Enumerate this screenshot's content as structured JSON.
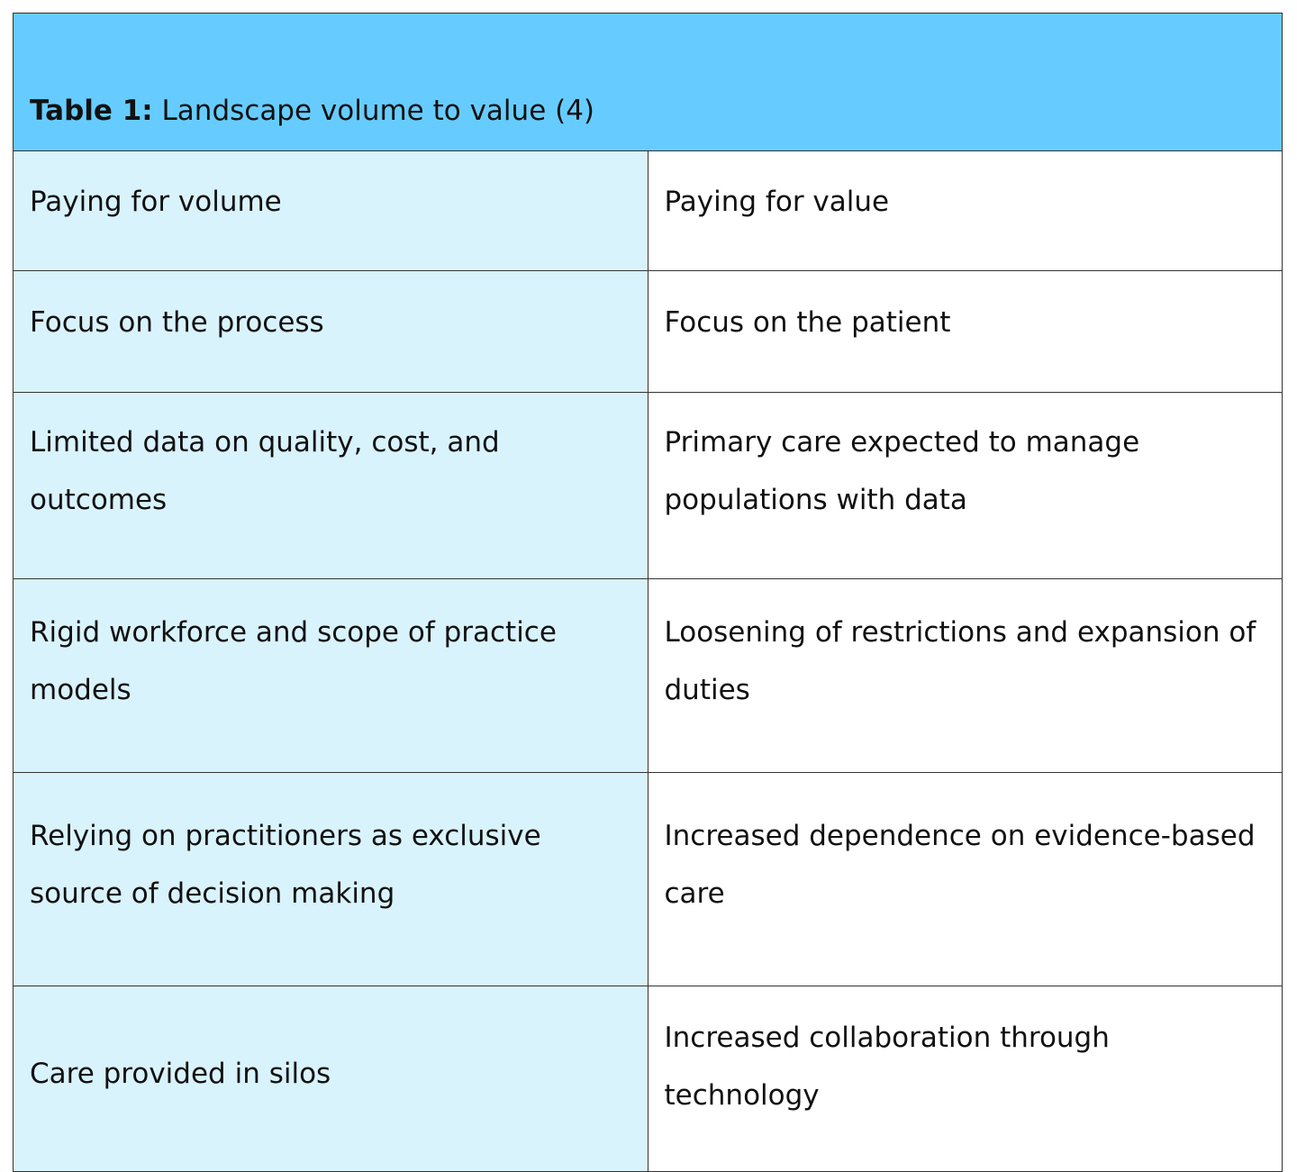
{
  "table": {
    "caption_label": "Table 1:",
    "caption_text": " Landscape volume to value (4)",
    "rows": [
      {
        "left": "Paying for volume",
        "right": "Paying for value"
      },
      {
        "left": "Focus on the process",
        "right": "Focus on the patient"
      },
      {
        "left": "Limited data on quality, cost, and outcomes",
        "right": "Primary care expected to manage populations with data"
      },
      {
        "left": "Rigid workforce and scope of practice models",
        "right": "Loosening of restrictions and expansion of duties"
      },
      {
        "left": "Relying on practitioners as exclusive source of decision making",
        "right": "Increased dependence on evidence-based care"
      },
      {
        "left": "Care provided in silos",
        "right": "Increased collaboration through technology"
      }
    ]
  },
  "colors": {
    "caption_background": "#66ccff",
    "left_column_background": "#d9f3fd",
    "right_column_background": "#ffffff",
    "border": "#333333"
  }
}
